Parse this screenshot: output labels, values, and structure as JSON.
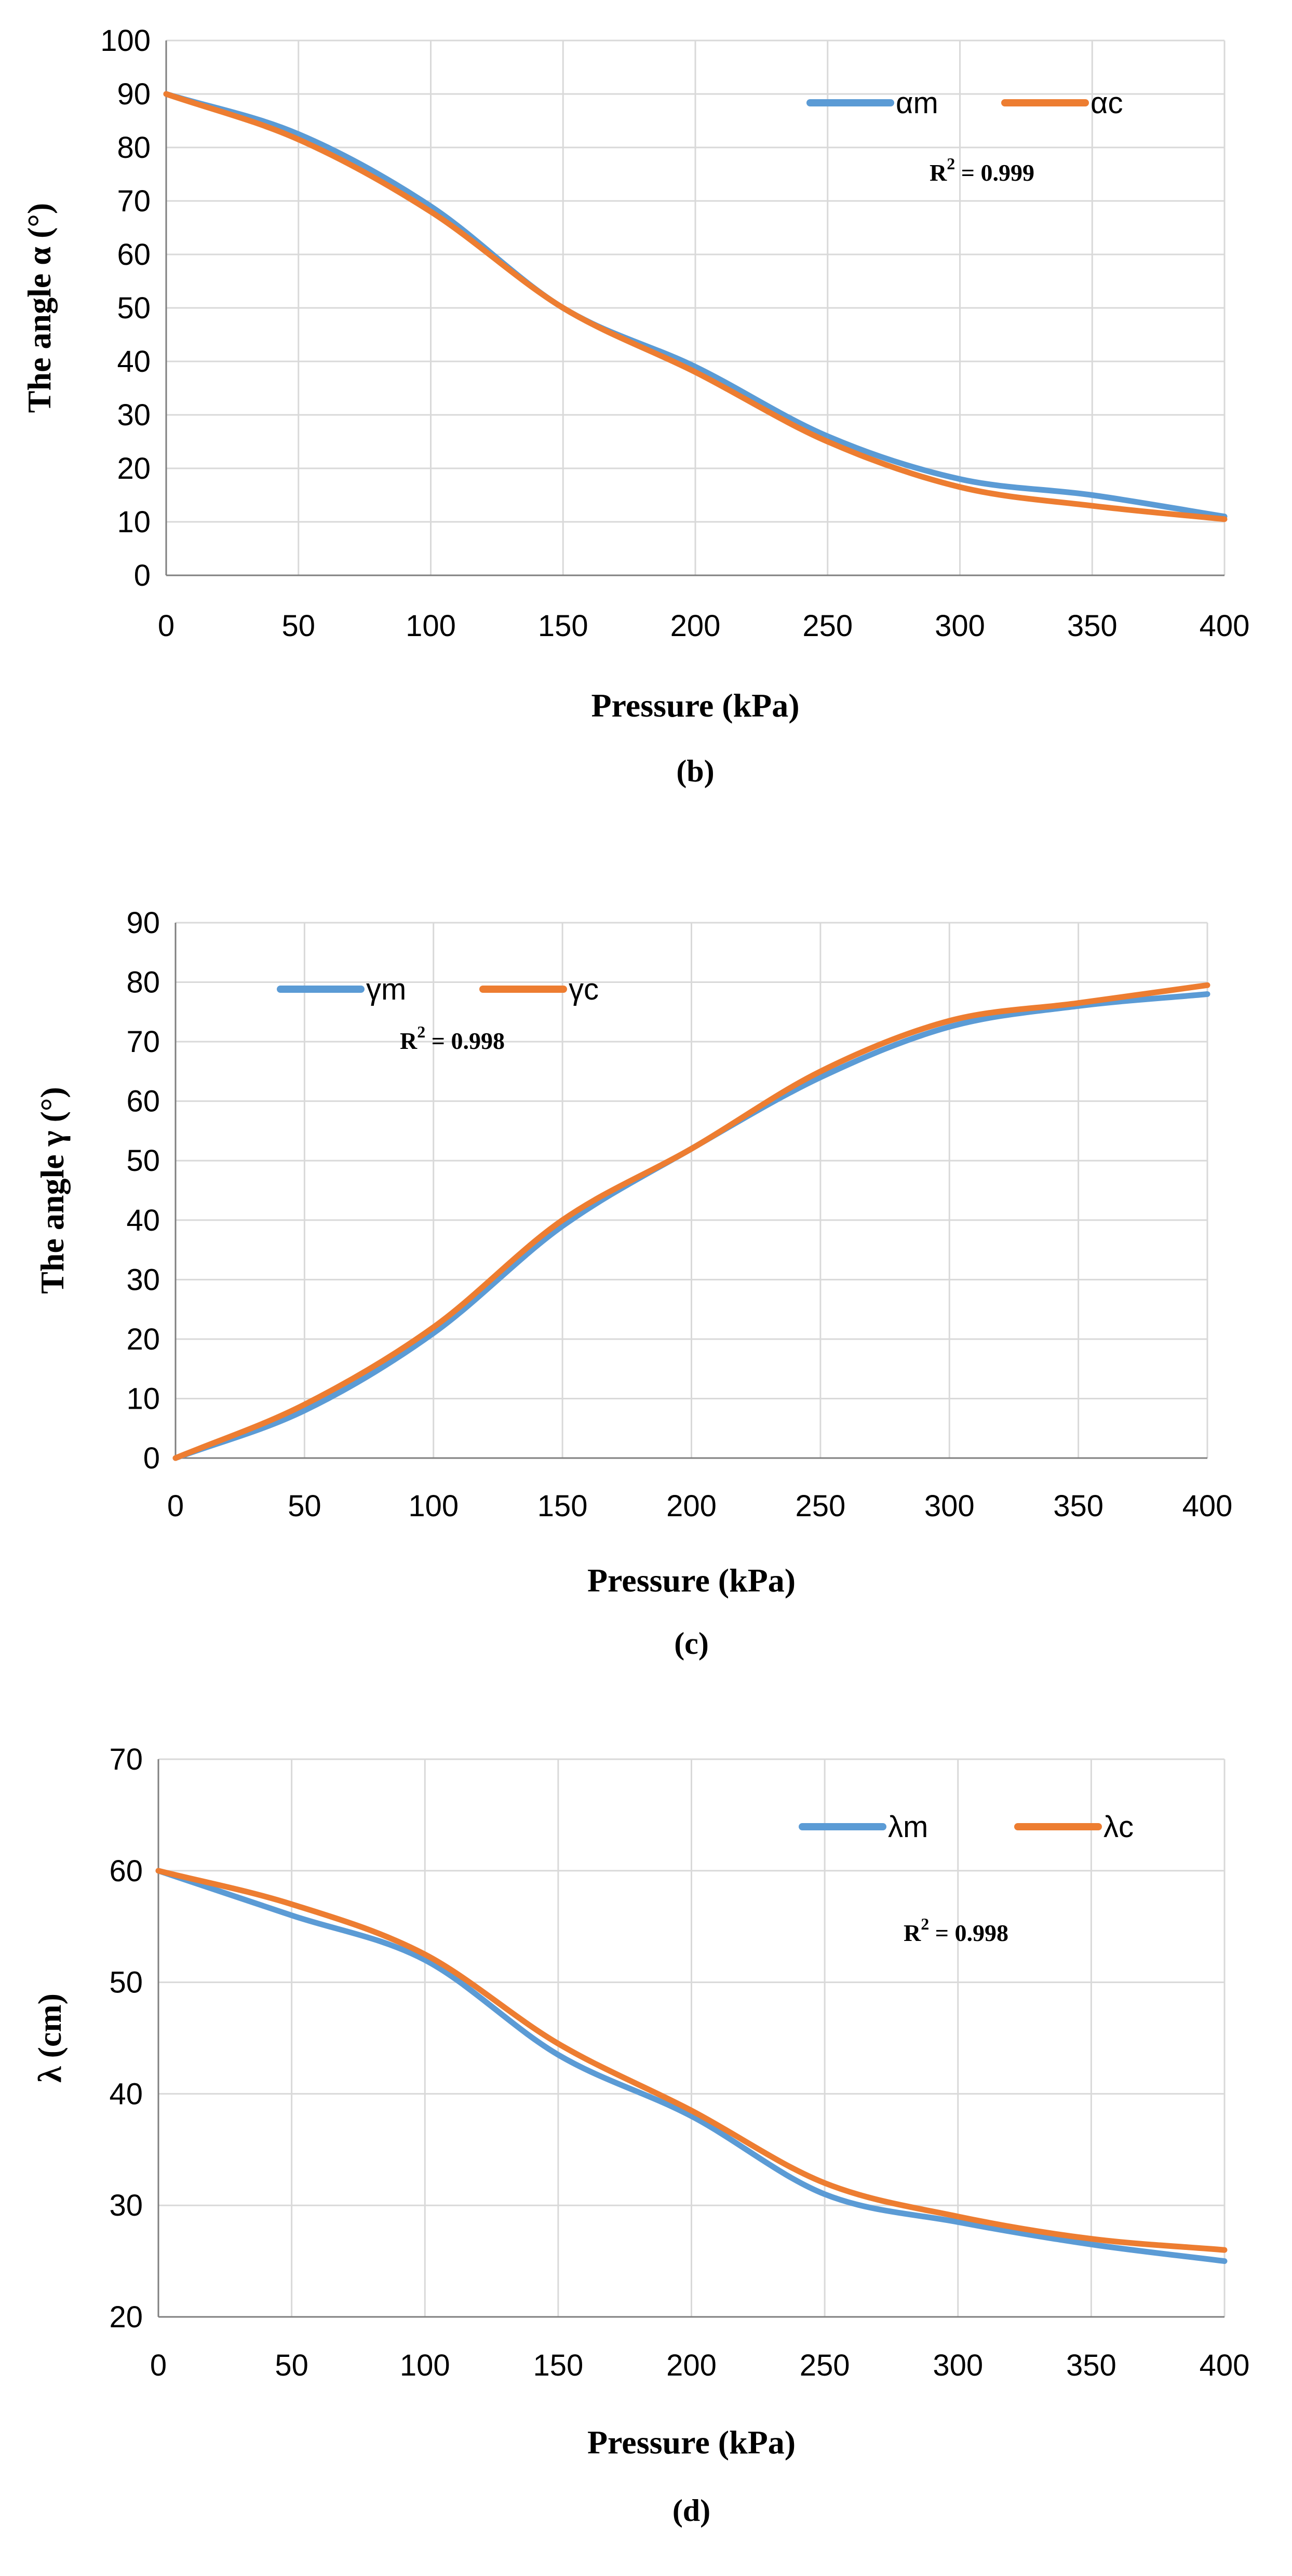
{
  "chart_data": [
    {
      "type": "line",
      "caption": "(b)",
      "xlabel": "Pressure (kPa)",
      "ylabel": "The angle α (°)",
      "x": [
        0,
        50,
        100,
        150,
        200,
        250,
        300,
        350,
        400
      ],
      "xlim": [
        0,
        400
      ],
      "ylim": [
        0,
        100
      ],
      "xticks": [
        0,
        50,
        100,
        150,
        200,
        250,
        300,
        350,
        400
      ],
      "yticks": [
        0,
        10,
        20,
        30,
        40,
        50,
        60,
        70,
        80,
        90,
        100
      ],
      "series": [
        {
          "name": "αm",
          "color": "#5b9bd5",
          "values": [
            90,
            82.5,
            69,
            50,
            39,
            26,
            18,
            15,
            11
          ]
        },
        {
          "name": "αc",
          "color": "#ed7d31",
          "values": [
            90,
            81.5,
            68,
            50,
            38,
            25,
            16.5,
            13,
            10.5
          ]
        }
      ],
      "annotation": {
        "prefix": "R",
        "sup": "2",
        "text": " = 0.999"
      },
      "legend": "top-right"
    },
    {
      "type": "line",
      "caption": "(c)",
      "xlabel": "Pressure (kPa)",
      "ylabel": "The angle γ (°)",
      "x": [
        0,
        50,
        100,
        150,
        200,
        250,
        300,
        350,
        400
      ],
      "xlim": [
        0,
        400
      ],
      "ylim": [
        0,
        90
      ],
      "xticks": [
        0,
        50,
        100,
        150,
        200,
        250,
        300,
        350,
        400
      ],
      "yticks": [
        0,
        10,
        20,
        30,
        40,
        50,
        60,
        70,
        80,
        90
      ],
      "series": [
        {
          "name": "γm",
          "color": "#5b9bd5",
          "values": [
            0,
            8,
            21,
            39,
            52,
            64,
            72.5,
            76,
            78
          ]
        },
        {
          "name": "γc",
          "color": "#ed7d31",
          "values": [
            0,
            9,
            22,
            40,
            52,
            65,
            73.5,
            76.5,
            79.5
          ]
        }
      ],
      "annotation": {
        "prefix": "R",
        "sup": "2",
        "text": " = 0.998"
      },
      "legend": "top-left"
    },
    {
      "type": "line",
      "caption": "(d)",
      "xlabel": "Pressure (kPa)",
      "ylabel": "λ (cm)",
      "x": [
        0,
        50,
        100,
        150,
        200,
        250,
        300,
        350,
        400
      ],
      "xlim": [
        0,
        400
      ],
      "ylim": [
        20,
        70
      ],
      "xticks": [
        0,
        50,
        100,
        150,
        200,
        250,
        300,
        350,
        400
      ],
      "yticks": [
        20,
        30,
        40,
        50,
        60,
        70
      ],
      "series": [
        {
          "name": "λm",
          "color": "#5b9bd5",
          "values": [
            60,
            56,
            52,
            43.5,
            38,
            31,
            28.5,
            26.5,
            25
          ]
        },
        {
          "name": "λc",
          "color": "#ed7d31",
          "values": [
            60,
            57,
            52.5,
            44.5,
            38.5,
            32,
            29,
            27,
            26
          ]
        }
      ],
      "annotation": {
        "prefix": "R",
        "sup": "2",
        "text": " = 0.998"
      },
      "legend": "top-right"
    }
  ]
}
